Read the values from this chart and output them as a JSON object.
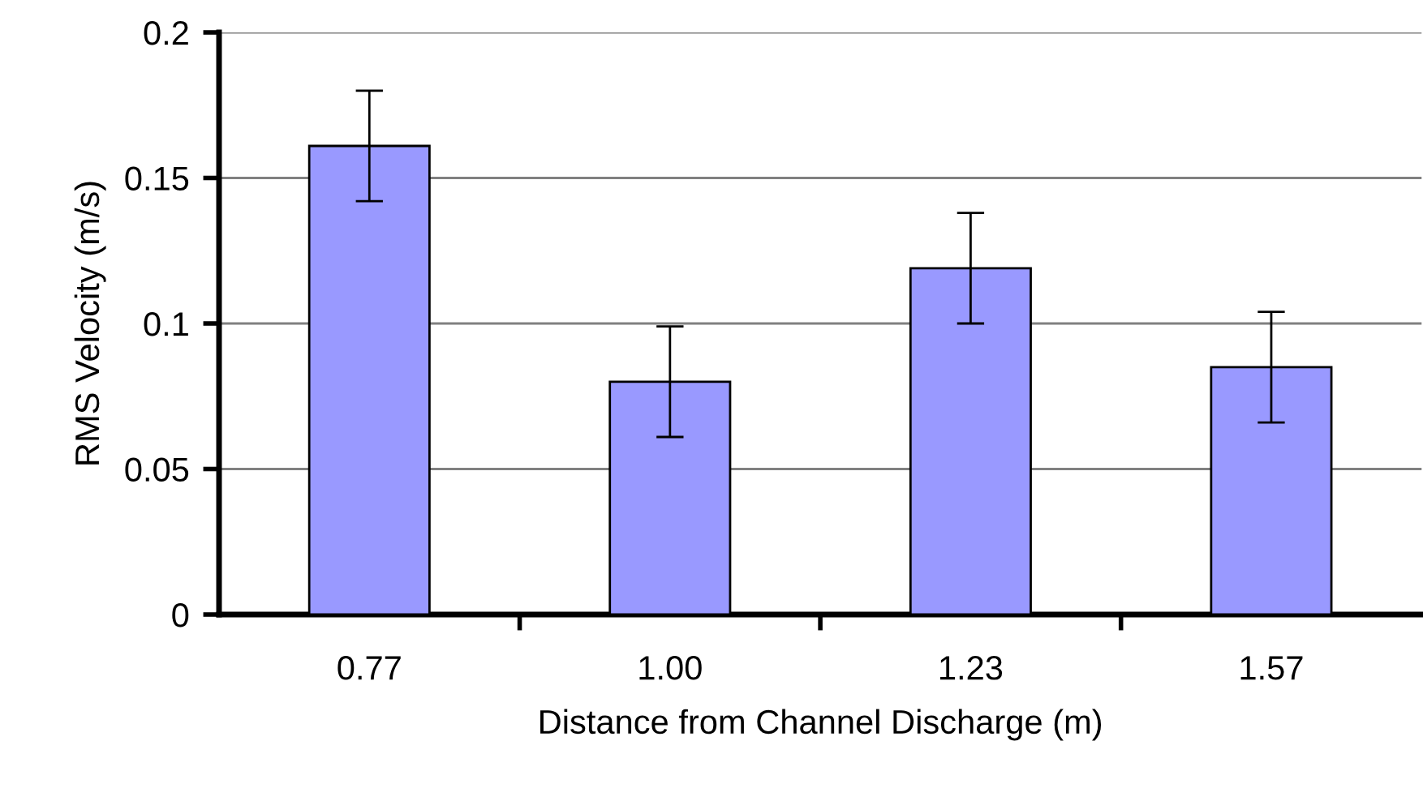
{
  "chart_data": {
    "type": "bar",
    "xlabel": "Distance from Channel Discharge (m)",
    "ylabel": "RMS Velocity (m/s)",
    "categories": [
      "0.77",
      "1.00",
      "1.23",
      "1.57"
    ],
    "values": [
      0.161,
      0.08,
      0.119,
      0.085
    ],
    "errors": [
      0.019,
      0.019,
      0.019,
      0.019
    ],
    "color": "#9999ff",
    "ylim": [
      0,
      0.2
    ],
    "yticks": [
      0,
      0.05,
      0.1,
      0.15,
      0.2
    ],
    "grid": "y"
  }
}
